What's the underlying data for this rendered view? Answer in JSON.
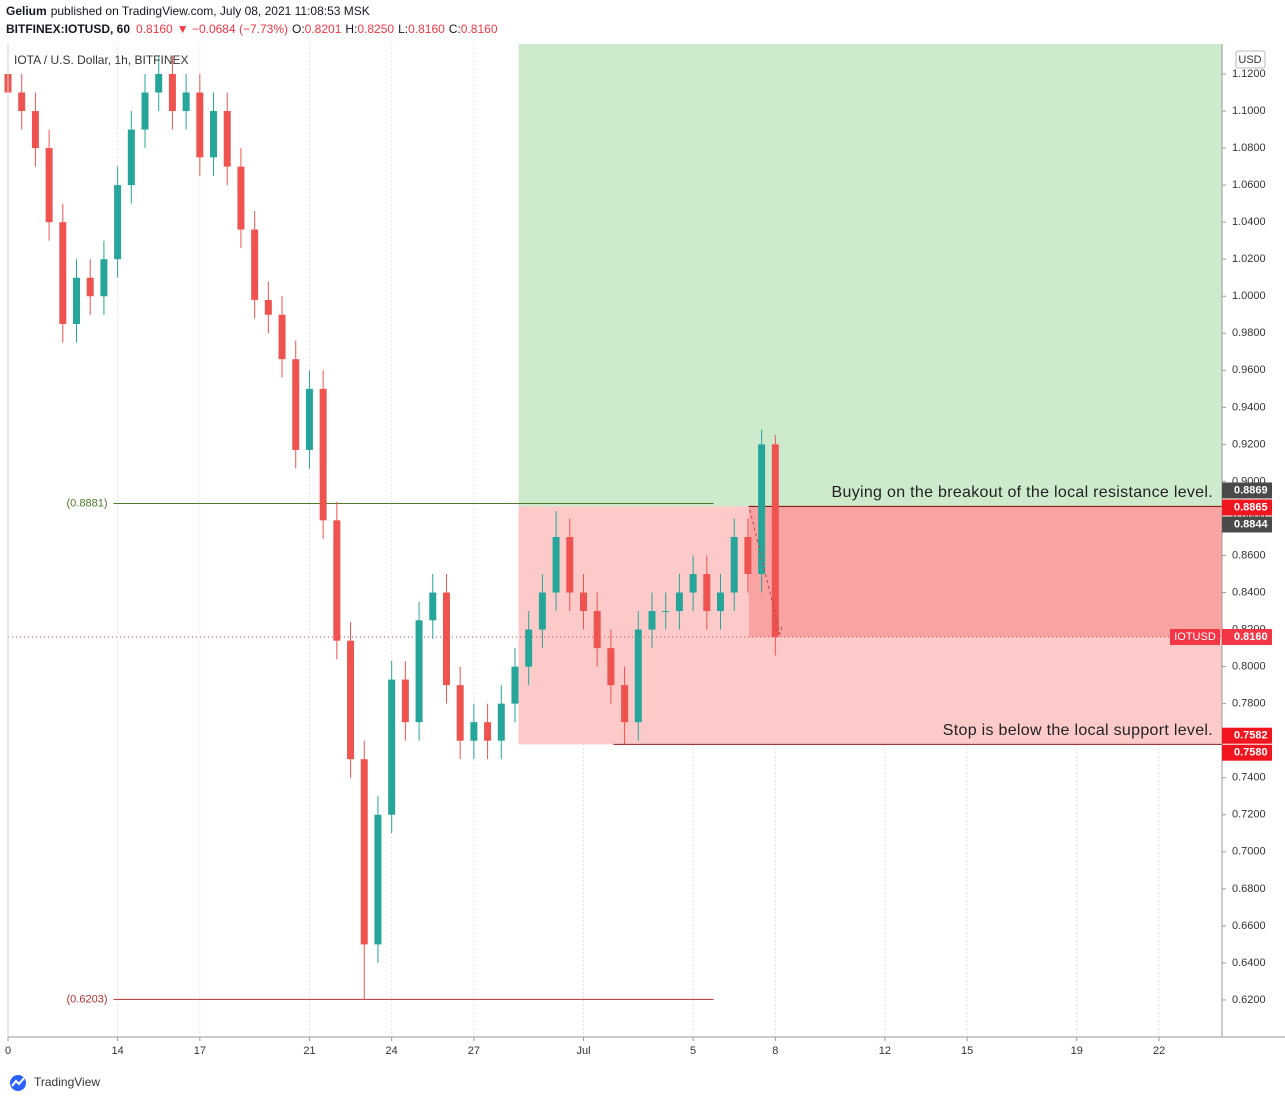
{
  "header": {
    "author": "Gelium",
    "published": "published on TradingView.com, July 08, 2021 11:08:53 MSK",
    "symbol": "BITFINEX:IOTUSD, 60",
    "price": "0.8160",
    "change": "▼ −0.0684 (−7.73%)",
    "ohlc": [
      {
        "label": "O:",
        "value": "0.8201"
      },
      {
        "label": "H:",
        "value": "0.8250"
      },
      {
        "label": "L:",
        "value": "0.8160"
      },
      {
        "label": "C:",
        "value": "0.8160"
      }
    ]
  },
  "footer": {
    "brand": "TradingView"
  },
  "chart_data": {
    "type": "candlestick",
    "title": "IOTA / U.S. Dollar, 1h, BITFINEX",
    "axis_unit": "USD",
    "up_color": "#26a69a",
    "down_color": "#ef5350",
    "x": [
      10,
      10.5,
      11,
      11.5,
      12,
      12.5,
      13,
      13.5,
      14,
      14.5,
      15,
      15.5,
      16,
      16.5,
      17,
      17.5,
      18,
      18.5,
      19,
      19.5,
      20,
      20.5,
      21,
      21.5,
      22,
      22.5,
      23,
      23.5,
      24,
      24.5,
      25,
      25.5,
      26,
      26.5,
      27,
      27.5,
      28,
      28.5,
      29,
      29.5,
      30,
      30.5,
      31,
      31.5,
      32,
      32.5,
      33,
      33.5,
      34,
      34.5,
      35,
      35.5,
      36,
      36.5,
      37,
      37.5,
      38
    ],
    "open": [
      1.12,
      1.11,
      1.1,
      1.08,
      1.04,
      0.985,
      1.01,
      1.0,
      1.02,
      1.06,
      1.09,
      1.11,
      1.12,
      1.1,
      1.11,
      1.075,
      1.1,
      1.07,
      1.036,
      0.998,
      0.99,
      0.966,
      0.917,
      0.95,
      0.879,
      0.814,
      0.75,
      0.65,
      0.72,
      0.793,
      0.77,
      0.825,
      0.84,
      0.79,
      0.76,
      0.77,
      0.76,
      0.78,
      0.8,
      0.82,
      0.84,
      0.87,
      0.84,
      0.83,
      0.81,
      0.79,
      0.77,
      0.82,
      0.83,
      0.83,
      0.84,
      0.85,
      0.83,
      0.84,
      0.87,
      0.85,
      0.92
    ],
    "high": [
      1.13,
      1.12,
      1.11,
      1.09,
      1.05,
      1.02,
      1.02,
      1.03,
      1.07,
      1.1,
      1.12,
      1.13,
      1.13,
      1.12,
      1.12,
      1.11,
      1.11,
      1.08,
      1.046,
      1.008,
      1.0,
      0.976,
      0.96,
      0.96,
      0.889,
      0.824,
      0.76,
      0.73,
      0.803,
      0.803,
      0.835,
      0.85,
      0.85,
      0.8,
      0.78,
      0.78,
      0.79,
      0.81,
      0.83,
      0.85,
      0.884,
      0.88,
      0.85,
      0.84,
      0.82,
      0.8,
      0.83,
      0.84,
      0.84,
      0.85,
      0.86,
      0.86,
      0.85,
      0.88,
      0.88,
      0.928,
      0.925
    ],
    "low": [
      1.1,
      1.09,
      1.07,
      1.03,
      0.975,
      0.975,
      0.99,
      0.99,
      1.01,
      1.05,
      1.08,
      1.1,
      1.09,
      1.09,
      1.065,
      1.065,
      1.06,
      1.026,
      0.988,
      0.98,
      0.956,
      0.907,
      0.907,
      0.869,
      0.804,
      0.74,
      0.62,
      0.64,
      0.71,
      0.76,
      0.76,
      0.815,
      0.78,
      0.75,
      0.75,
      0.75,
      0.75,
      0.77,
      0.79,
      0.81,
      0.83,
      0.83,
      0.82,
      0.8,
      0.78,
      0.758,
      0.76,
      0.81,
      0.82,
      0.82,
      0.83,
      0.82,
      0.82,
      0.83,
      0.84,
      0.84,
      0.806
    ],
    "close": [
      1.11,
      1.1,
      1.08,
      1.04,
      0.985,
      1.01,
      1.0,
      1.02,
      1.06,
      1.09,
      1.11,
      1.12,
      1.1,
      1.11,
      1.075,
      1.1,
      1.07,
      1.036,
      0.998,
      0.99,
      0.966,
      0.917,
      0.95,
      0.879,
      0.814,
      0.75,
      0.65,
      0.72,
      0.793,
      0.77,
      0.825,
      0.84,
      0.79,
      0.76,
      0.77,
      0.76,
      0.78,
      0.8,
      0.82,
      0.84,
      0.87,
      0.84,
      0.83,
      0.81,
      0.79,
      0.77,
      0.82,
      0.83,
      0.83,
      0.84,
      0.85,
      0.83,
      0.84,
      0.87,
      0.85,
      0.92,
      0.816
    ],
    "xlim": [
      10,
      54.3
    ],
    "ylim": [
      0.6,
      1.1362
    ],
    "xticks": [
      {
        "value": 10,
        "label": "0"
      },
      14,
      17,
      21,
      24,
      27,
      {
        "value": 31,
        "label": "Jul"
      },
      {
        "value": 35,
        "label": "5"
      },
      {
        "value": 38,
        "label": "8"
      },
      {
        "value": 42,
        "label": "12"
      },
      {
        "value": 45,
        "label": "15"
      },
      {
        "value": 49,
        "label": "19"
      },
      {
        "value": 52,
        "label": "22"
      }
    ],
    "yticks": [
      {
        "value": 0.62,
        "label": "0.6200"
      },
      {
        "value": 0.64,
        "label": "0.6400"
      },
      {
        "value": 0.66,
        "label": "0.6600"
      },
      {
        "value": 0.68,
        "label": "0.6800"
      },
      {
        "value": 0.7,
        "label": "0.7000"
      },
      {
        "value": 0.72,
        "label": "0.7200"
      },
      {
        "value": 0.74,
        "label": "0.7400"
      },
      {
        "value": 0.76,
        "label": "0.7600"
      },
      {
        "value": 0.78,
        "label": "0.7800"
      },
      {
        "value": 0.8,
        "label": "0.8000"
      },
      {
        "value": 0.82,
        "label": "0.8200"
      },
      {
        "value": 0.84,
        "label": "0.8400"
      },
      {
        "value": 0.86,
        "label": "0.8600"
      },
      {
        "value": 0.88,
        "label": "0.8800"
      },
      {
        "value": 0.9,
        "label": "0.9000"
      },
      {
        "value": 0.92,
        "label": "0.9200"
      },
      {
        "value": 0.94,
        "label": "0.9400"
      },
      {
        "value": 0.96,
        "label": "0.9600"
      },
      {
        "value": 0.98,
        "label": "0.9800"
      },
      {
        "value": 1.0,
        "label": "1.0000"
      },
      {
        "value": 1.02,
        "label": "1.0200"
      },
      {
        "value": 1.04,
        "label": "1.0400"
      },
      {
        "value": 1.06,
        "label": "1.0600"
      },
      {
        "value": 1.08,
        "label": "1.0800"
      },
      {
        "value": 1.1,
        "label": "1.1000"
      },
      {
        "value": 1.12,
        "label": "1.1200"
      }
    ],
    "grid": true,
    "price_labels": [
      {
        "value": 0.8869,
        "label": "0.8869",
        "color": "#4a4a4a"
      },
      {
        "value": 0.8865,
        "label": "0.8865",
        "color": "#f0151f"
      },
      {
        "value": 0.8844,
        "label": "0.8844",
        "color": "#4a4a4a"
      },
      {
        "value": 0.816,
        "label": "0.8160",
        "tag": "IOTUSD",
        "color": "#f23645"
      },
      {
        "value": 0.7582,
        "label": "0.7582",
        "color": "#f0151f"
      },
      {
        "value": 0.758,
        "label": "0.7580",
        "color": "#f0151f"
      }
    ],
    "levels": [
      {
        "value": 0.8881,
        "label": "(0.8881)",
        "color": "#4d7a2a"
      },
      {
        "value": 0.6203,
        "label": "(0.6203)",
        "color": "#b03030"
      }
    ],
    "level_x": [
      13.85,
      35.75
    ],
    "position_x": [
      28.63,
      37.03
    ],
    "annotations": [
      "Buying on the breakout of the local resistance level.",
      "Stop is below the local support level."
    ]
  }
}
